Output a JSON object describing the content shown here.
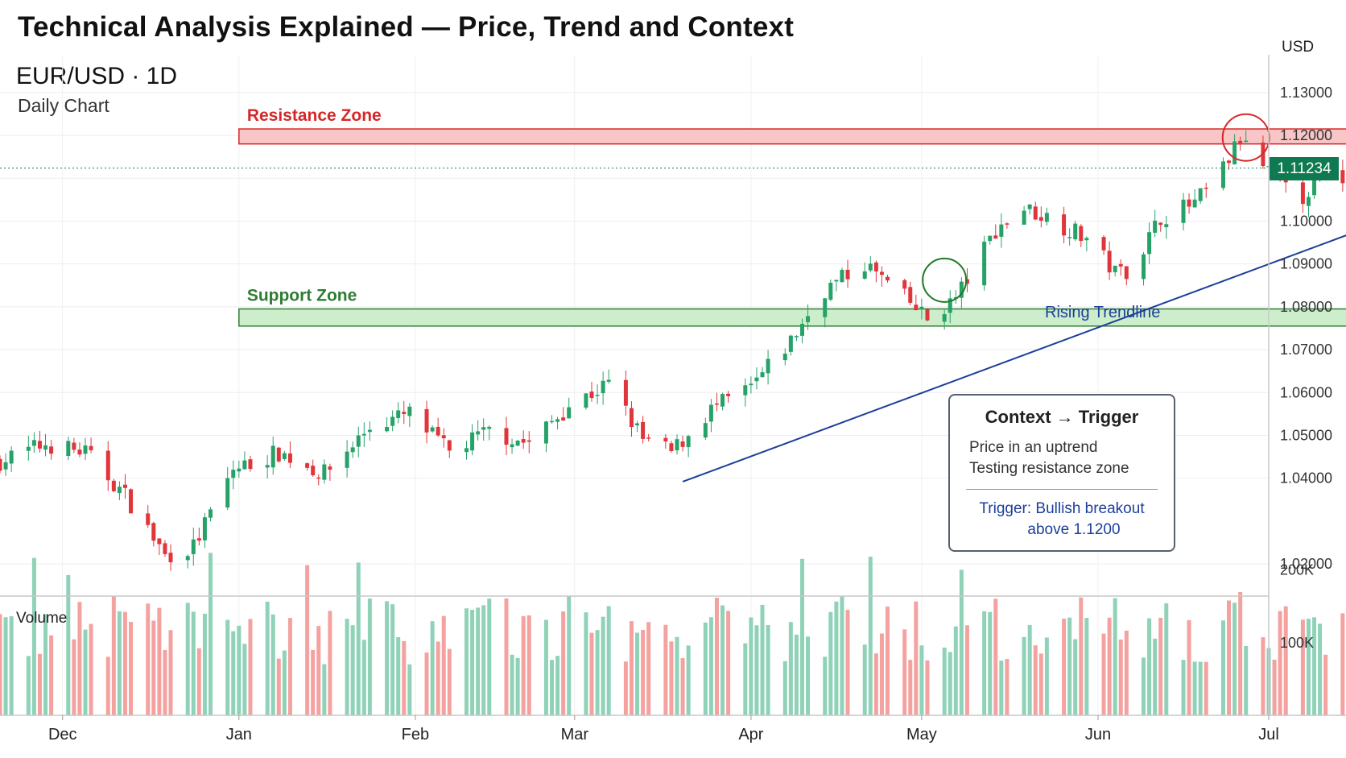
{
  "page": {
    "title": "Technical Analysis Explained — Price, Trend and Context",
    "symbol": "EUR/USD · 1D",
    "subtitle": "Daily Chart",
    "currency": "USD",
    "last_price": "1.11234",
    "volume_label": "Volume"
  },
  "context_box": {
    "title": "Context → Trigger",
    "line1": "Price in an uptrend",
    "line2": "Testing resistance zone",
    "trigger1": "Trigger: Bullish breakout",
    "trigger2": "above 1.1200"
  },
  "chart_data": {
    "type": "candlestick",
    "x_axis": {
      "labels": [
        "Dec",
        "Jan",
        "Feb",
        "Mar",
        "Apr",
        "May",
        "Jun",
        "Jul"
      ],
      "range": [
        "2024-11-20",
        "2025-07-01"
      ]
    },
    "y_axis": {
      "ticks": [
        1.13,
        1.12,
        1.11,
        1.1,
        1.09,
        1.08,
        1.07,
        1.06,
        1.05,
        1.04,
        1.02
      ],
      "tick_labels": [
        "1.13000",
        "1.12000",
        "",
        "1.10000",
        "1.09000",
        "1.08000",
        "1.07000",
        "1.06000",
        "1.05000",
        "1.04000",
        "1.02000"
      ],
      "range": [
        1.0125,
        1.1435
      ],
      "position": "right"
    },
    "volume_axis": {
      "ticks": [
        200000,
        100000
      ],
      "tick_labels": [
        "200K",
        "100K"
      ],
      "range": [
        0,
        265000
      ]
    },
    "anchors": [
      {
        "date": "2024-11-20",
        "close": 1.044
      },
      {
        "date": "2024-11-28",
        "close": 1.048
      },
      {
        "date": "2024-12-05",
        "close": 1.046
      },
      {
        "date": "2024-12-12",
        "close": 1.036
      },
      {
        "date": "2024-12-19",
        "close": 1.022
      },
      {
        "date": "2024-12-24",
        "close": 1.024
      },
      {
        "date": "2024-12-31",
        "close": 1.042
      },
      {
        "date": "2025-01-08",
        "close": 1.046
      },
      {
        "date": "2025-01-16",
        "close": 1.041
      },
      {
        "date": "2025-01-24",
        "close": 1.052
      },
      {
        "date": "2025-01-31",
        "close": 1.055
      },
      {
        "date": "2025-02-07",
        "close": 1.046
      },
      {
        "date": "2025-02-14",
        "close": 1.051
      },
      {
        "date": "2025-02-21",
        "close": 1.048
      },
      {
        "date": "2025-02-28",
        "close": 1.057
      },
      {
        "date": "2025-03-07",
        "close": 1.062
      },
      {
        "date": "2025-03-13",
        "close": 1.049
      },
      {
        "date": "2025-03-18",
        "close": 1.046
      },
      {
        "date": "2025-03-25",
        "close": 1.056
      },
      {
        "date": "2025-04-01",
        "close": 1.061
      },
      {
        "date": "2025-04-08",
        "close": 1.072
      },
      {
        "date": "2025-04-14",
        "close": 1.084
      },
      {
        "date": "2025-04-21",
        "close": 1.09
      },
      {
        "date": "2025-04-28",
        "close": 1.082
      },
      {
        "date": "2025-05-02",
        "close": 1.077
      },
      {
        "date": "2025-05-07",
        "close": 1.082
      },
      {
        "date": "2025-05-14",
        "close": 1.098
      },
      {
        "date": "2025-05-19",
        "close": 1.103
      },
      {
        "date": "2025-05-23",
        "close": 1.101
      },
      {
        "date": "2025-05-30",
        "close": 1.096
      },
      {
        "date": "2025-06-04",
        "close": 1.088
      },
      {
        "date": "2025-06-07",
        "close": 1.089
      },
      {
        "date": "2025-06-12",
        "close": 1.101
      },
      {
        "date": "2025-06-18",
        "close": 1.104
      },
      {
        "date": "2025-06-22",
        "close": 1.11
      },
      {
        "date": "2025-06-26",
        "close": 1.119
      },
      {
        "date": "2025-06-29",
        "close": 1.114
      },
      {
        "date": "2025-07-02",
        "close": 1.11
      },
      {
        "date": "2025-07-06",
        "close": 1.104
      },
      {
        "date": "2025-07-10",
        "close": 1.111
      },
      {
        "date": "2025-07-13",
        "close": 1.109
      },
      {
        "date": "2025-07-16",
        "close": 1.11234
      }
    ],
    "resistance_zone": {
      "label": "Resistance Zone",
      "from": 1.118,
      "to": 1.1215,
      "start": "2025-01-01",
      "end": "2025-08-12",
      "color": "#d62728"
    },
    "support_zone": {
      "label": "Support Zone",
      "from": 1.0755,
      "to": 1.0795,
      "start": "2025-01-01",
      "end": "2025-08-12",
      "color": "#2e7d32"
    },
    "trendline": {
      "label": "Rising Trendline",
      "start": {
        "date": "2025-03-20",
        "value": 1.0392
      },
      "end": {
        "date": "2025-08-06",
        "value": 1.1077
      },
      "color": "#1d3f9a"
    },
    "current_price": 1.11234,
    "colors": {
      "up": "#26a269",
      "down": "#e0353a",
      "volume_up": "#8fd2b8",
      "volume_down": "#f4a2a0"
    }
  }
}
